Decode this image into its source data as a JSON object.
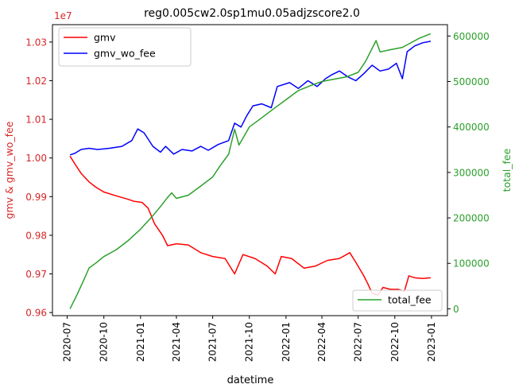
{
  "chart_data": {
    "type": "line",
    "title": "reg0.005cw2.0sp1mu0.05adjzscore2.0",
    "xlabel": "datetime",
    "ylabel_left": "gmv & gmv_wo_fee",
    "ylabel_right": "total_fee",
    "left_axis_multiplier": "1e7",
    "left_axis_color": "#d62728",
    "right_axis_color": "#2ca02c",
    "x_ticks": [
      "2020-07",
      "2020-10",
      "2021-01",
      "2021-04",
      "2021-07",
      "2021-10",
      "2022-01",
      "2022-04",
      "2022-07",
      "2022-10",
      "2023-01"
    ],
    "y_left_ticks": [
      "0.96",
      "0.97",
      "0.98",
      "0.99",
      "1.00",
      "1.01",
      "1.02",
      "1.03"
    ],
    "y_right_ticks": [
      "0",
      "100000",
      "200000",
      "300000",
      "400000",
      "500000",
      "600000"
    ],
    "xlim": [
      "2020-05-25",
      "2023-02-10"
    ],
    "ylim_left": [
      0.9592,
      1.0345
    ],
    "ylim_right": [
      -15000,
      625000
    ],
    "legend_left": {
      "position": "upper-left",
      "entries": [
        "gmv",
        "gmv_wo_fee"
      ]
    },
    "legend_right": {
      "position": "lower-right",
      "entries": [
        "total_fee"
      ]
    },
    "series": [
      {
        "name": "gmv",
        "axis": "left",
        "color": "#ff0000",
        "points": [
          [
            "2020-07-08",
            1.0005
          ],
          [
            "2020-07-20",
            0.9985
          ],
          [
            "2020-08-05",
            0.996
          ],
          [
            "2020-08-25",
            0.9938
          ],
          [
            "2020-09-10",
            0.9925
          ],
          [
            "2020-10-01",
            0.9912
          ],
          [
            "2020-11-01",
            0.9902
          ],
          [
            "2020-12-01",
            0.9893
          ],
          [
            "2020-12-15",
            0.9888
          ],
          [
            "2021-01-05",
            0.9885
          ],
          [
            "2021-01-20",
            0.987
          ],
          [
            "2021-02-05",
            0.983
          ],
          [
            "2021-02-25",
            0.98
          ],
          [
            "2021-03-10",
            0.9773
          ],
          [
            "2021-04-01",
            0.9778
          ],
          [
            "2021-05-01",
            0.9775
          ],
          [
            "2021-06-01",
            0.9755
          ],
          [
            "2021-07-01",
            0.9745
          ],
          [
            "2021-08-01",
            0.974
          ],
          [
            "2021-08-25",
            0.97
          ],
          [
            "2021-09-15",
            0.975
          ],
          [
            "2021-10-15",
            0.974
          ],
          [
            "2021-11-15",
            0.972
          ],
          [
            "2021-12-05",
            0.97
          ],
          [
            "2021-12-20",
            0.9745
          ],
          [
            "2022-01-15",
            0.974
          ],
          [
            "2022-02-15",
            0.9715
          ],
          [
            "2022-03-15",
            0.972
          ],
          [
            "2022-04-15",
            0.9735
          ],
          [
            "2022-05-15",
            0.974
          ],
          [
            "2022-06-10",
            0.9755
          ],
          [
            "2022-06-25",
            0.973
          ],
          [
            "2022-07-15",
            0.9695
          ],
          [
            "2022-07-25",
            0.9675
          ],
          [
            "2022-08-05",
            0.965
          ],
          [
            "2022-08-20",
            0.9645
          ],
          [
            "2022-09-01",
            0.9665
          ],
          [
            "2022-09-20",
            0.966
          ],
          [
            "2022-10-10",
            0.966
          ],
          [
            "2022-10-25",
            0.9655
          ],
          [
            "2022-11-05",
            0.9695
          ],
          [
            "2022-11-20",
            0.969
          ],
          [
            "2022-12-10",
            0.9688
          ],
          [
            "2022-12-30",
            0.969
          ]
        ]
      },
      {
        "name": "gmv_wo_fee",
        "axis": "left",
        "color": "#0000ff",
        "points": [
          [
            "2020-07-08",
            1.0008
          ],
          [
            "2020-07-20",
            1.0012
          ],
          [
            "2020-08-05",
            1.0022
          ],
          [
            "2020-08-25",
            1.0025
          ],
          [
            "2020-09-15",
            1.0022
          ],
          [
            "2020-10-15",
            1.0025
          ],
          [
            "2020-11-15",
            1.003
          ],
          [
            "2020-12-10",
            1.0045
          ],
          [
            "2020-12-25",
            1.0075
          ],
          [
            "2021-01-10",
            1.0065
          ],
          [
            "2021-02-01",
            1.003
          ],
          [
            "2021-02-20",
            1.0015
          ],
          [
            "2021-03-05",
            1.003
          ],
          [
            "2021-03-25",
            1.001
          ],
          [
            "2021-04-15",
            1.0022
          ],
          [
            "2021-05-10",
            1.0018
          ],
          [
            "2021-06-01",
            1.003
          ],
          [
            "2021-06-20",
            1.002
          ],
          [
            "2021-07-15",
            1.0035
          ],
          [
            "2021-08-10",
            1.0045
          ],
          [
            "2021-08-25",
            1.009
          ],
          [
            "2021-09-10",
            1.008
          ],
          [
            "2021-09-25",
            1.011
          ],
          [
            "2021-10-10",
            1.0135
          ],
          [
            "2021-11-01",
            1.014
          ],
          [
            "2021-11-25",
            1.013
          ],
          [
            "2021-12-10",
            1.0185
          ],
          [
            "2022-01-10",
            1.0195
          ],
          [
            "2022-02-01",
            1.018
          ],
          [
            "2022-02-25",
            1.02
          ],
          [
            "2022-03-20",
            1.0185
          ],
          [
            "2022-04-10",
            1.0205
          ],
          [
            "2022-04-25",
            1.0215
          ],
          [
            "2022-05-15",
            1.0225
          ],
          [
            "2022-06-05",
            1.021
          ],
          [
            "2022-06-25",
            1.02
          ],
          [
            "2022-07-15",
            1.0218
          ],
          [
            "2022-08-05",
            1.024
          ],
          [
            "2022-08-25",
            1.0225
          ],
          [
            "2022-09-15",
            1.023
          ],
          [
            "2022-10-05",
            1.0245
          ],
          [
            "2022-10-20",
            1.0205
          ],
          [
            "2022-11-01",
            1.0275
          ],
          [
            "2022-11-20",
            1.029
          ],
          [
            "2022-12-10",
            1.0298
          ],
          [
            "2022-12-30",
            1.0302
          ]
        ]
      },
      {
        "name": "total_fee",
        "axis": "right",
        "color": "#2ca02c",
        "points": [
          [
            "2020-07-08",
            0
          ],
          [
            "2020-07-25",
            30000
          ],
          [
            "2020-08-10",
            60000
          ],
          [
            "2020-08-25",
            90000
          ],
          [
            "2020-09-10",
            100000
          ],
          [
            "2020-10-01",
            115000
          ],
          [
            "2020-11-01",
            130000
          ],
          [
            "2020-12-01",
            150000
          ],
          [
            "2021-01-01",
            175000
          ],
          [
            "2021-02-01",
            205000
          ],
          [
            "2021-02-20",
            225000
          ],
          [
            "2021-03-10",
            245000
          ],
          [
            "2021-03-20",
            255000
          ],
          [
            "2021-04-01",
            243000
          ],
          [
            "2021-05-01",
            250000
          ],
          [
            "2021-06-01",
            270000
          ],
          [
            "2021-07-01",
            290000
          ],
          [
            "2021-07-20",
            315000
          ],
          [
            "2021-08-10",
            340000
          ],
          [
            "2021-08-25",
            395000
          ],
          [
            "2021-09-05",
            360000
          ],
          [
            "2021-10-01",
            400000
          ],
          [
            "2021-11-01",
            420000
          ],
          [
            "2021-12-01",
            440000
          ],
          [
            "2022-01-01",
            460000
          ],
          [
            "2022-02-01",
            480000
          ],
          [
            "2022-03-01",
            490000
          ],
          [
            "2022-04-01",
            500000
          ],
          [
            "2022-05-01",
            505000
          ],
          [
            "2022-06-01",
            510000
          ],
          [
            "2022-07-01",
            520000
          ],
          [
            "2022-07-20",
            545000
          ],
          [
            "2022-08-15",
            590000
          ],
          [
            "2022-08-25",
            565000
          ],
          [
            "2022-09-20",
            570000
          ],
          [
            "2022-10-20",
            575000
          ],
          [
            "2022-11-10",
            585000
          ],
          [
            "2022-12-01",
            595000
          ],
          [
            "2022-12-30",
            605000
          ]
        ]
      }
    ]
  }
}
